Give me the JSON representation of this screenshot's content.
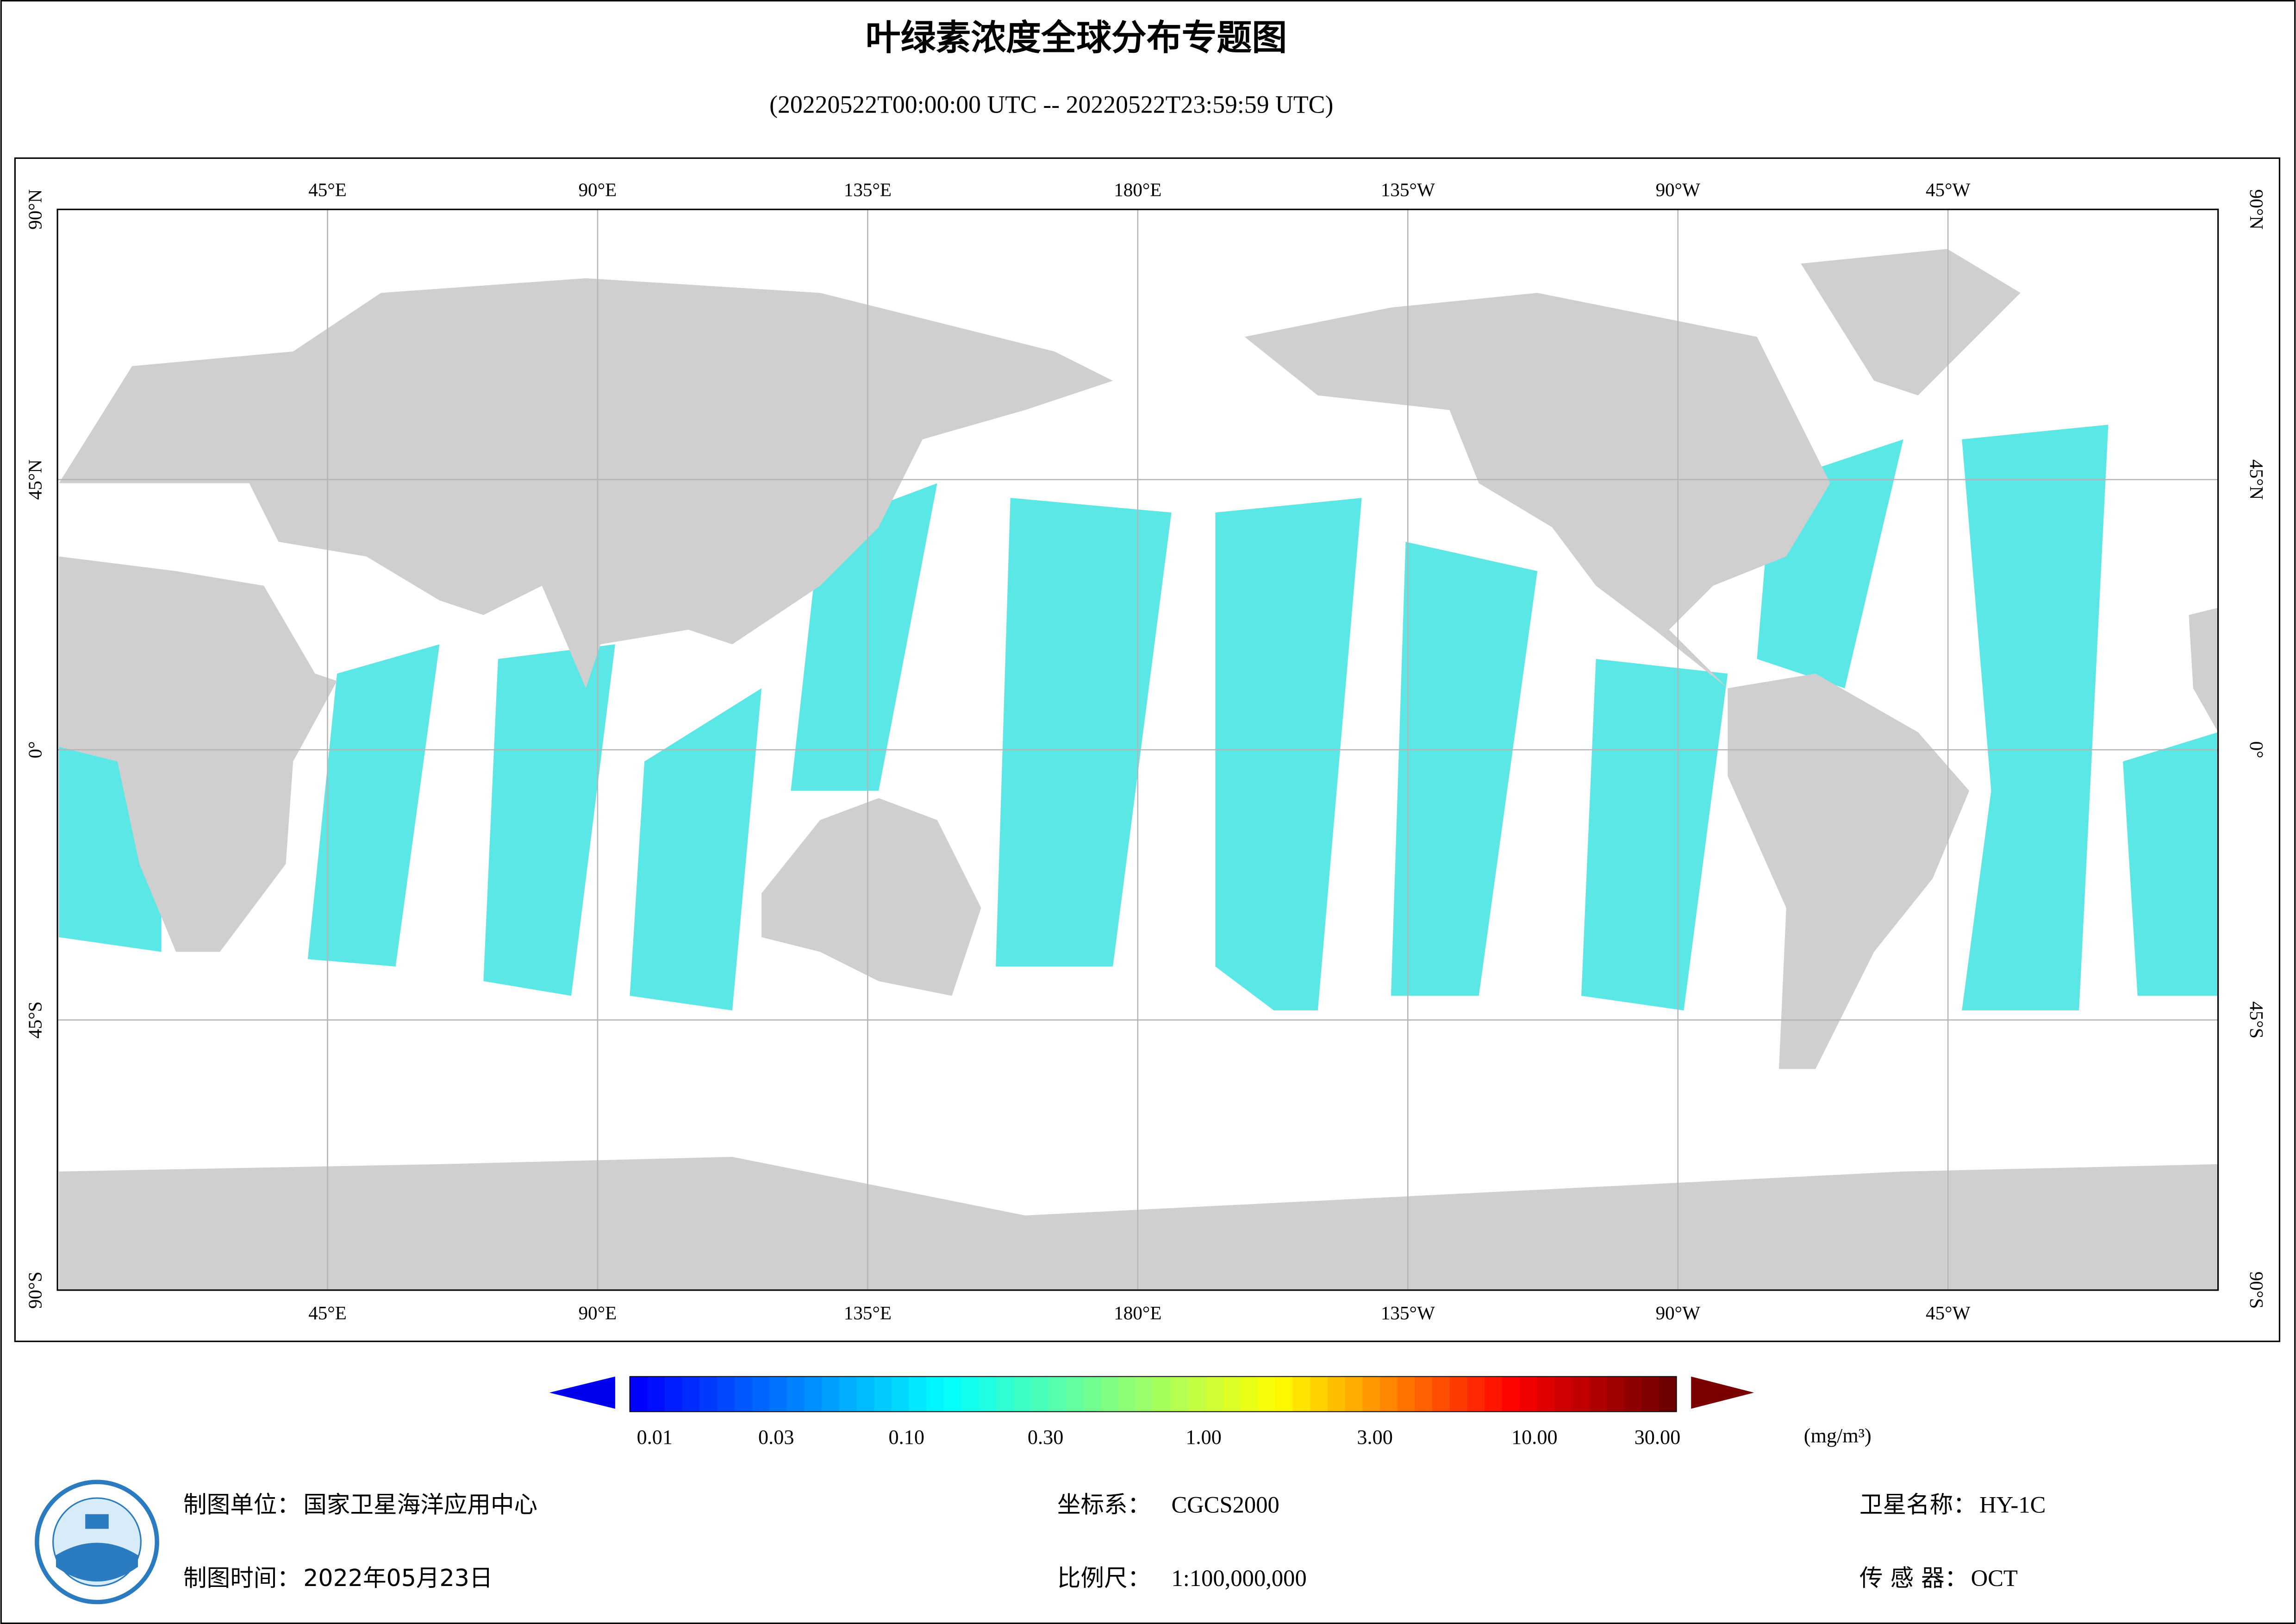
{
  "header": {
    "title": "叶绿素浓度全球分布专题图",
    "subtitle": "(20220522T00:00:00 UTC -- 20220522T23:59:59 UTC)"
  },
  "map": {
    "lon_labels": [
      "45°E",
      "90°E",
      "135°E",
      "180°E",
      "135°W",
      "90°W",
      "45°W"
    ],
    "lat_labels": [
      "90°N",
      "45°N",
      "0°",
      "45°S",
      "90°S"
    ]
  },
  "colorbar": {
    "ticks": [
      0.01,
      0.03,
      {
        "value": 0.1,
        "label": "0.10"
      },
      {
        "value": 0.3,
        "label": "0.30"
      },
      {
        "value": 1,
        "label": "1.00"
      },
      {
        "value": 3,
        "label": "3.00"
      },
      {
        "value": 10,
        "label": "10.00"
      },
      {
        "value": 30,
        "label": "30.00"
      }
    ],
    "unit": "(mg/m³)",
    "log_scale": true
  },
  "footer": [
    {
      "label": "制图单位：",
      "value": "国家卫星海洋应用中心"
    },
    {
      "label": "坐标系：",
      "value": "CGCS2000"
    },
    {
      "label": "卫星名称：",
      "value": "HY-1C"
    },
    {
      "label": "制图时间：",
      "value": "2022年05月23日"
    },
    {
      "label": "比例尺：",
      "value": "1:100,000,000"
    },
    {
      "label": "传 感 器：",
      "value": "OCT"
    }
  ]
}
